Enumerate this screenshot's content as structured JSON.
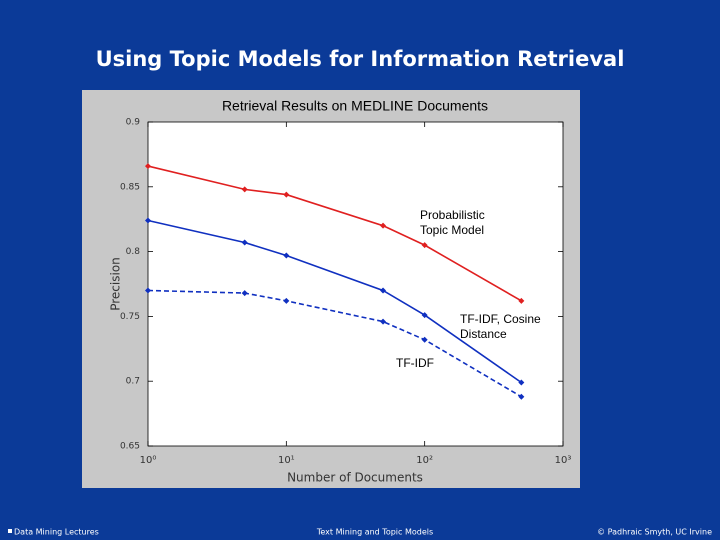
{
  "slide": {
    "title": "Using Topic Models for Information Retrieval",
    "footer_left": "Data Mining Lectures",
    "footer_center": "Text Mining and Topic Models",
    "footer_right": "© Padhraic Smyth, UC Irvine"
  },
  "chart_data": {
    "type": "line",
    "title": "Retrieval Results on MEDLINE Documents",
    "x_label": "Number of Documents",
    "y_label": "Precision",
    "x": [
      1,
      5,
      10,
      50,
      100,
      500
    ],
    "xscale": "log",
    "xlim": [
      1,
      1000
    ],
    "xticks": [
      {
        "value": 1,
        "label": "10⁰"
      },
      {
        "value": 10,
        "label": "10¹"
      },
      {
        "value": 100,
        "label": "10²"
      },
      {
        "value": 1000,
        "label": "10³"
      }
    ],
    "ylim": [
      0.65,
      0.9
    ],
    "yticks": [
      0.65,
      0.7,
      0.75,
      0.8,
      0.85,
      0.9
    ],
    "series": [
      {
        "color": "#e02020",
        "dash": false,
        "values": [
          0.866,
          0.848,
          0.844,
          0.82,
          0.805,
          0.762
        ]
      },
      {
        "color": "#1030c0",
        "dash": false,
        "values": [
          0.824,
          0.807,
          0.797,
          0.77,
          0.751,
          0.699
        ]
      },
      {
        "color": "#1030c0",
        "dash": true,
        "values": [
          0.77,
          0.768,
          0.762,
          0.746,
          0.732,
          0.688
        ]
      }
    ],
    "annotations": [
      {
        "lines": [
          "Probabilistic",
          "Topic Model"
        ]
      },
      {
        "lines": [
          "TF-IDF, Cosine",
          "Distance"
        ]
      },
      {
        "lines": [
          "TF-IDF"
        ]
      }
    ]
  }
}
